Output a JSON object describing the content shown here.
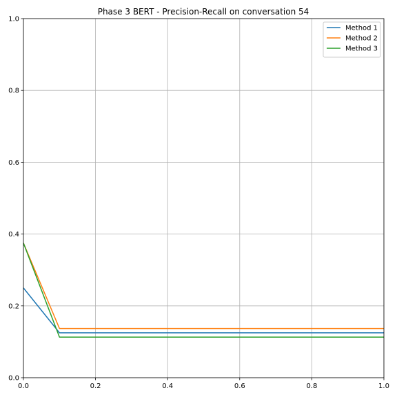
{
  "chart_data": {
    "type": "line",
    "title": "Phase 3 BERT - Precision-Recall on conversation 54",
    "xlabel": "",
    "ylabel": "",
    "xlim": [
      0,
      1
    ],
    "ylim": [
      0,
      1
    ],
    "x_ticks": [
      0.0,
      0.2,
      0.4,
      0.6,
      0.8,
      1.0
    ],
    "x_tick_labels": [
      "0.0",
      "0.2",
      "0.4",
      "0.6",
      "0.8",
      "1.0"
    ],
    "y_ticks": [
      0.0,
      0.2,
      0.4,
      0.6,
      0.8,
      1.0
    ],
    "y_tick_labels": [
      "0.0",
      "0.2",
      "0.4",
      "0.6",
      "0.8",
      "1.0"
    ],
    "grid": true,
    "legend_position": "top-right",
    "series": [
      {
        "name": "Method 1",
        "color": "#1f77b4",
        "x": [
          0.0,
          0.1,
          1.0
        ],
        "y": [
          0.25,
          0.125,
          0.125
        ]
      },
      {
        "name": "Method 2",
        "color": "#ff7f0e",
        "x": [
          0.0,
          0.1,
          1.0
        ],
        "y": [
          0.375,
          0.137,
          0.137
        ]
      },
      {
        "name": "Method 3",
        "color": "#2ca02c",
        "x": [
          0.0,
          0.1,
          1.0
        ],
        "y": [
          0.375,
          0.113,
          0.113
        ]
      }
    ]
  }
}
